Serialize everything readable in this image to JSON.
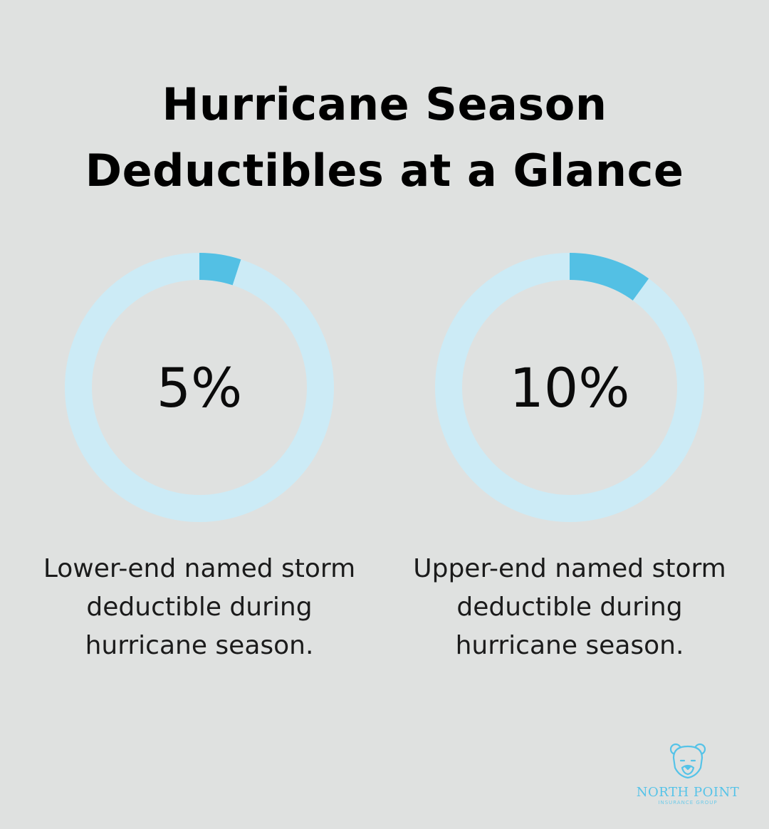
{
  "title_lines": [
    "Hurricane Season",
    "Deductibles at a Glance"
  ],
  "chart_data": [
    {
      "type": "pie",
      "style": "donut",
      "value": 5,
      "label": "5%",
      "caption_lines": [
        "Lower-end named storm",
        "deductible during",
        "hurricane season."
      ],
      "fill_color": "#53c0e4",
      "track_color": "#ccebf6"
    },
    {
      "type": "pie",
      "style": "donut",
      "value": 10,
      "label": "10%",
      "caption_lines": [
        "Upper-end named storm",
        "deductible during",
        "hurricane season."
      ],
      "fill_color": "#53c0e4",
      "track_color": "#ccebf6"
    }
  ],
  "logo": {
    "icon": "bear-head-icon",
    "name": "NORTH POINT",
    "subtitle": "INSURANCE GROUP",
    "color": "#55c3e8"
  }
}
